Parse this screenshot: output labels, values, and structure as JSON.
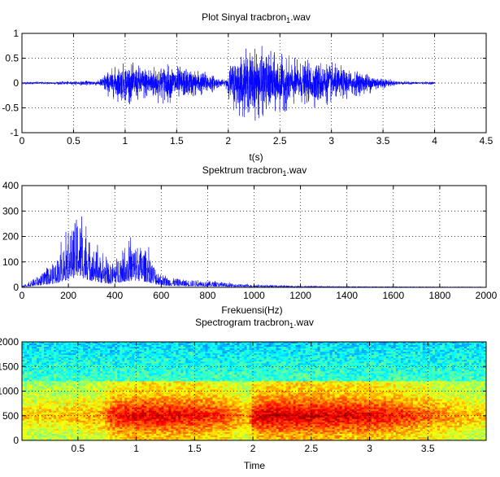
{
  "chart_data": [
    {
      "type": "line",
      "title": {
        "main": "Plot Sinyal tracbron",
        "sub": "1",
        "tail": ".wav"
      },
      "xlabel": "t(s)",
      "ylabel": "",
      "xlim": [
        0,
        4.5
      ],
      "ylim": [
        -1,
        1
      ],
      "x_ticks": [
        0,
        0.5,
        1,
        1.5,
        2,
        2.5,
        3,
        3.5,
        4,
        4.5
      ],
      "x_tick_labels": [
        "0",
        "0.5",
        "1",
        "1.5",
        "2",
        "2.5",
        "3",
        "3.5",
        "4",
        "4.5"
      ],
      "y_ticks": [
        -1,
        -0.5,
        0,
        0.5,
        1
      ],
      "y_tick_labels": [
        "-1",
        "-0.5",
        "0",
        "0.5",
        "1"
      ],
      "grid": true,
      "series_color": "#0000ff",
      "envelope": {
        "t": [
          0,
          0.2,
          0.5,
          0.75,
          0.8,
          0.9,
          1.0,
          1.1,
          1.2,
          1.3,
          1.4,
          1.5,
          1.6,
          1.7,
          1.8,
          1.9,
          1.97,
          2.0,
          2.05,
          2.1,
          2.2,
          2.3,
          2.4,
          2.5,
          2.6,
          2.7,
          2.8,
          2.9,
          3.0,
          3.1,
          3.2,
          3.3,
          3.4,
          3.5,
          3.6,
          3.7,
          3.8,
          4.0
        ],
        "amplitude": [
          0.03,
          0.03,
          0.04,
          0.06,
          0.22,
          0.35,
          0.45,
          0.4,
          0.38,
          0.4,
          0.42,
          0.38,
          0.33,
          0.3,
          0.25,
          0.12,
          0.06,
          0.3,
          0.55,
          0.65,
          0.72,
          0.78,
          0.65,
          0.6,
          0.55,
          0.45,
          0.48,
          0.5,
          0.42,
          0.35,
          0.3,
          0.25,
          0.2,
          0.12,
          0.06,
          0.04,
          0.03,
          0.03
        ]
      }
    },
    {
      "type": "line",
      "title": {
        "main": "Spektrum   tracbron",
        "sub": "1",
        "tail": ".wav"
      },
      "xlabel": "Frekuensi(Hz)",
      "ylabel": "",
      "xlim": [
        0,
        2000
      ],
      "ylim": [
        0,
        400
      ],
      "x_ticks": [
        0,
        200,
        400,
        600,
        800,
        1000,
        1200,
        1400,
        1600,
        1800,
        2000
      ],
      "x_tick_labels": [
        "0",
        "200",
        "400",
        "600",
        "800",
        "1000",
        "1200",
        "1400",
        "1600",
        "1800",
        "2000"
      ],
      "y_ticks": [
        0,
        100,
        200,
        300,
        400
      ],
      "y_tick_labels": [
        "0",
        "100",
        "200",
        "300",
        "400"
      ],
      "grid": true,
      "series_color": "#0000ff",
      "envelope": {
        "f": [
          0,
          30,
          60,
          100,
          150,
          200,
          240,
          270,
          300,
          340,
          380,
          420,
          460,
          500,
          540,
          580,
          620,
          700,
          800,
          900,
          1000,
          1200,
          1400,
          1600,
          2000
        ],
        "magnitude": [
          5,
          20,
          40,
          60,
          110,
          200,
          280,
          220,
          170,
          120,
          90,
          130,
          160,
          170,
          140,
          70,
          40,
          30,
          25,
          15,
          10,
          6,
          4,
          3,
          2
        ]
      }
    },
    {
      "type": "heatmap",
      "title": {
        "main": "Spectrogram    tracbron",
        "sub": "1",
        "tail": ".wav"
      },
      "xlabel": "Time",
      "ylabel": "",
      "xlim": [
        0.02,
        4.0
      ],
      "ylim": [
        0,
        2000
      ],
      "x_ticks": [
        0.5,
        1,
        1.5,
        2,
        2.5,
        3,
        3.5
      ],
      "x_tick_labels": [
        "0.5",
        "1",
        "1.5",
        "2",
        "2.5",
        "3",
        "3.5"
      ],
      "y_ticks": [
        0,
        500,
        1000,
        1500,
        2000
      ],
      "y_tick_labels": [
        "0",
        "500",
        "1000",
        "1500",
        "2000"
      ],
      "grid": true,
      "colormap": [
        "#00008f",
        "#0000ff",
        "#0080ff",
        "#00ffff",
        "#80ff80",
        "#ffff00",
        "#ff8000",
        "#ff0000",
        "#800000"
      ],
      "energy_envelope": {
        "t": [
          0,
          0.2,
          0.4,
          0.7,
          0.8,
          1.0,
          1.5,
          1.8,
          1.95,
          2.0,
          2.1,
          2.5,
          3.0,
          3.3,
          3.6,
          3.8,
          4.0
        ],
        "level": [
          0.1,
          0.12,
          0.15,
          0.25,
          0.7,
          0.85,
          0.78,
          0.55,
          0.2,
          0.7,
          0.95,
          0.9,
          0.82,
          0.65,
          0.4,
          0.2,
          0.12
        ]
      }
    }
  ]
}
